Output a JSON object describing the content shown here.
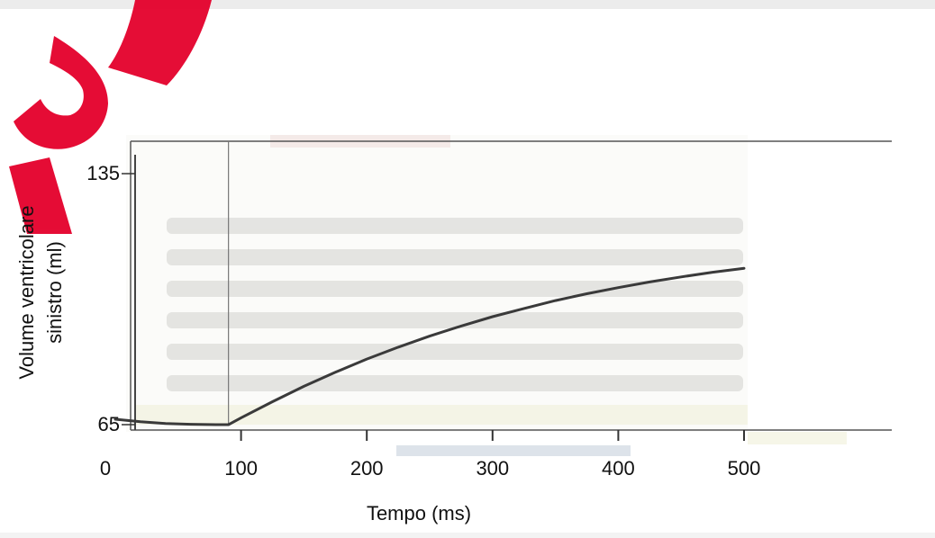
{
  "chart_data": {
    "type": "line",
    "title": "",
    "xlabel": "Tempo (ms)",
    "ylabel_lines": [
      "Volume ventricolare",
      "sinistro (ml)"
    ],
    "xlim": [
      0,
      500
    ],
    "ylim": [
      65,
      135
    ],
    "x_ticks": [
      0,
      100,
      200,
      300,
      400,
      500
    ],
    "y_ticks": [
      65,
      135
    ],
    "grid": false,
    "series": [
      {
        "x": [
          0,
          20,
          40,
          60,
          80,
          90,
          100,
          125,
          150,
          175,
          200,
          225,
          250,
          275,
          300,
          325,
          350,
          375,
          400,
          425,
          450,
          475,
          500
        ],
        "y": [
          66.5,
          65.8,
          65.3,
          65.1,
          65.0,
          65.0,
          66.9,
          71.4,
          75.7,
          79.6,
          83.3,
          86.6,
          89.7,
          92.5,
          95.1,
          97.4,
          99.6,
          101.5,
          103.2,
          104.8,
          106.2,
          107.5,
          108.6
        ]
      }
    ],
    "marker_line_x": 90,
    "line_color": "#3a3a3a"
  }
}
